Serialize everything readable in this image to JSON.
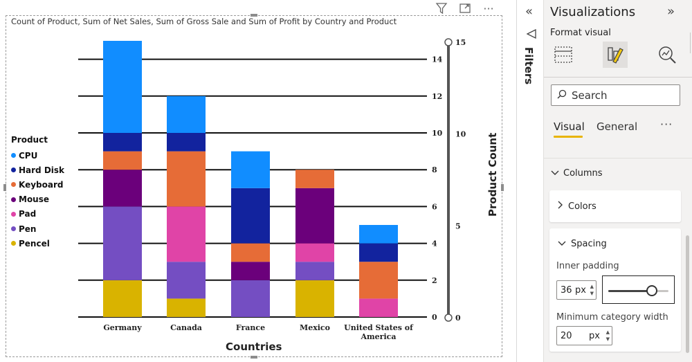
{
  "visual": {
    "title": "Count of Product, Sum of Net Sales, Sum of Gross Sale and Sum of Profit by Country and Product",
    "toolbar": {
      "filter_icon": "filter-icon",
      "focus_icon": "focus-mode-icon",
      "more_icon": "more-options-icon",
      "more_label": "···"
    }
  },
  "chart_data": {
    "type": "bar",
    "stacked": true,
    "title": "Count of Product, Sum of Net Sales, Sum of Gross Sale and Sum of Profit by Country and Product",
    "xlabel": "Countries",
    "ylabel": "",
    "y2label": "Product Count",
    "categories": [
      "Germany",
      "Canada",
      "France",
      "Mexico",
      "United States of America"
    ],
    "category_lines": [
      [
        "Germany"
      ],
      [
        "Canada"
      ],
      [
        "France"
      ],
      [
        "Mexico"
      ],
      [
        "United States of",
        "America"
      ]
    ],
    "legend_title": "Product",
    "legend_position": "left",
    "series": [
      {
        "name": "Pencel",
        "color": "#d9b300",
        "values": [
          2,
          1,
          0,
          2,
          0
        ]
      },
      {
        "name": "Pen",
        "color": "#744ec2",
        "values": [
          4,
          2,
          2,
          1,
          0
        ]
      },
      {
        "name": "Pad",
        "color": "#e044a7",
        "values": [
          0,
          3,
          0,
          1,
          1
        ]
      },
      {
        "name": "Mouse",
        "color": "#6b007b",
        "values": [
          2,
          0,
          1,
          3,
          0
        ]
      },
      {
        "name": "Keyboard",
        "color": "#e66c37",
        "values": [
          1,
          3,
          1,
          1,
          2
        ]
      },
      {
        "name": "Hard Disk",
        "color": "#12239e",
        "values": [
          1,
          1,
          3,
          0,
          1
        ]
      },
      {
        "name": "CPU",
        "color": "#118dff",
        "values": [
          5,
          2,
          2,
          0,
          1
        ]
      }
    ],
    "legend_order": [
      "CPU",
      "Hard Disk",
      "Keyboard",
      "Mouse",
      "Pad",
      "Pen",
      "Pencel"
    ],
    "ylim": [
      0,
      15
    ],
    "y_ticks": [
      0,
      2,
      4,
      6,
      8,
      10,
      12,
      14
    ],
    "y2_ticks": [
      0,
      5,
      10,
      15
    ],
    "y2_slider_range": [
      0,
      15
    ],
    "grid": true
  },
  "filters": {
    "label": "Filters",
    "collapse_label": "«"
  },
  "viz_pane": {
    "title": "Visualizations",
    "expand_label": "»",
    "section_label": "Format visual",
    "tabs": [
      "build-visual",
      "format-visual",
      "analytics"
    ],
    "search_placeholder": "Search",
    "subtabs": {
      "visual": "Visual",
      "general": "General",
      "more": "···"
    },
    "columns_label": "Columns",
    "colors_label": "Colors",
    "spacing_label": "Spacing",
    "inner_padding_label": "Inner padding",
    "inner_padding_value": "36",
    "inner_padding_unit": "px",
    "inner_padding_slider": 0.72,
    "min_cat_label": "Minimum category width",
    "min_cat_value": "20",
    "min_cat_unit": "px"
  }
}
